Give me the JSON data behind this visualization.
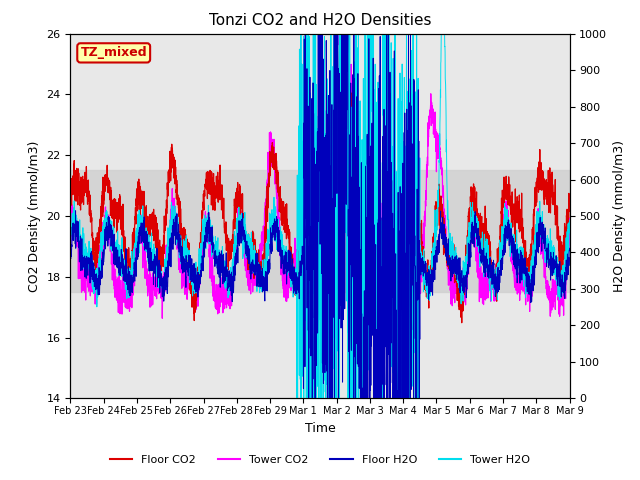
{
  "title": "Tonzi CO2 and H2O Densities",
  "xlabel": "Time",
  "ylabel_left": "CO2 Density (mmol/m3)",
  "ylabel_right": "H2O Density (mmol/m3)",
  "ylim_left": [
    14,
    26
  ],
  "ylim_right": [
    0,
    1000
  ],
  "yticks_left": [
    14,
    16,
    18,
    20,
    22,
    24,
    26
  ],
  "yticks_right": [
    0,
    100,
    200,
    300,
    400,
    500,
    600,
    700,
    800,
    900,
    1000
  ],
  "shade_band_co2": [
    17.5,
    21.5
  ],
  "xtick_labels": [
    "Feb 23",
    "Feb 24",
    "Feb 25",
    "Feb 26",
    "Feb 27",
    "Feb 28",
    "Feb 29",
    "Mar 1",
    "Mar 2",
    "Mar 3",
    "Mar 4",
    "Mar 5",
    "Mar 6",
    "Mar 7",
    "Mar 8",
    "Mar 9"
  ],
  "annotation_text": "TZ_mixed",
  "annotation_bg": "#ffffaa",
  "annotation_edge": "#cc0000",
  "colors": {
    "floor_co2": "#dd0000",
    "tower_co2": "#ff00ff",
    "floor_h2o": "#0000bb",
    "tower_h2o": "#00ddee"
  },
  "legend_labels": [
    "Floor CO2",
    "Tower CO2",
    "Floor H2O",
    "Tower H2O"
  ],
  "plot_bg": "#e8e8e8",
  "shade_color": "#d0d0d0",
  "n_points": 3000,
  "seed": 7
}
